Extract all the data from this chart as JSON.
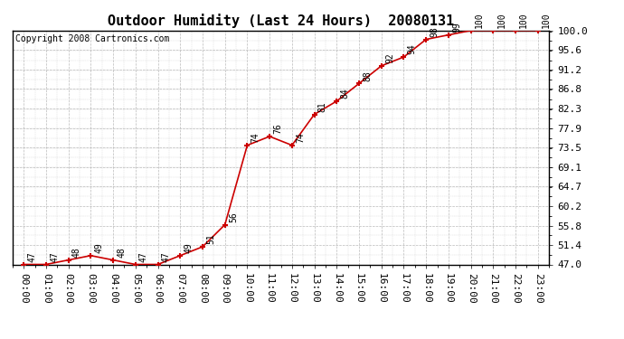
{
  "title": "Outdoor Humidity (Last 24 Hours)  20080131",
  "copyright": "Copyright 2008 Cartronics.com",
  "x_labels": [
    "00:00",
    "01:00",
    "02:00",
    "03:00",
    "04:00",
    "05:00",
    "06:00",
    "07:00",
    "08:00",
    "09:00",
    "10:00",
    "11:00",
    "12:00",
    "13:00",
    "14:00",
    "15:00",
    "16:00",
    "17:00",
    "18:00",
    "19:00",
    "20:00",
    "21:00",
    "22:00",
    "23:00"
  ],
  "x_values": [
    0,
    1,
    2,
    3,
    4,
    5,
    6,
    7,
    8,
    9,
    10,
    11,
    12,
    13,
    14,
    15,
    16,
    17,
    18,
    19,
    20,
    21,
    22,
    23
  ],
  "y_values": [
    47,
    47,
    48,
    49,
    48,
    47,
    47,
    49,
    51,
    56,
    74,
    76,
    74,
    81,
    84,
    88,
    92,
    94,
    98,
    99,
    100,
    100,
    100,
    100
  ],
  "ylim": [
    47.0,
    100.0
  ],
  "yticks": [
    47.0,
    51.4,
    55.8,
    60.2,
    64.7,
    69.1,
    73.5,
    77.9,
    82.3,
    86.8,
    91.2,
    95.6,
    100.0
  ],
  "line_color": "#cc0000",
  "marker_color": "#cc0000",
  "bg_color": "#ffffff",
  "grid_color": "#bbbbbb",
  "title_fontsize": 11,
  "copyright_fontsize": 7,
  "annot_fontsize": 7,
  "tick_fontsize": 8
}
